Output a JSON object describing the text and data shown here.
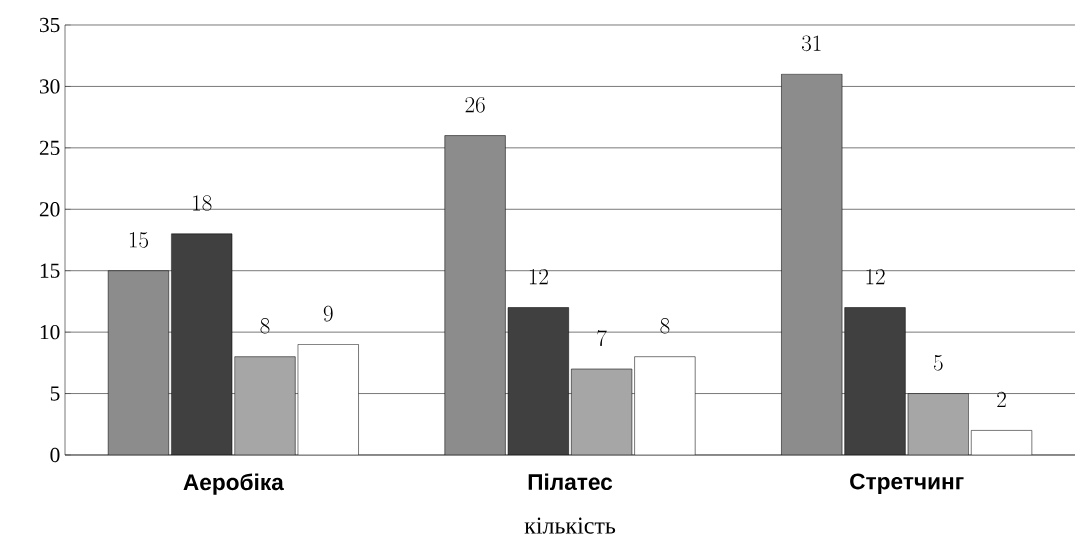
{
  "chart_data": {
    "type": "bar",
    "xlabel": "кількість",
    "categories": [
      "Аеробіка",
      "Пілатес",
      "Стретчинг"
    ],
    "series": [
      {
        "color": "#8c8c8c",
        "values": [
          15,
          26,
          31
        ]
      },
      {
        "color": "#404040",
        "values": [
          18,
          12,
          12
        ]
      },
      {
        "color": "#a6a6a6",
        "values": [
          8,
          7,
          5
        ]
      },
      {
        "color": "#ffffff",
        "values": [
          9,
          8,
          2
        ]
      }
    ],
    "ylim": [
      0,
      35
    ],
    "yticks": [
      0,
      5,
      10,
      15,
      20,
      25,
      30,
      35
    ],
    "grid": "y",
    "data_labels": true
  }
}
